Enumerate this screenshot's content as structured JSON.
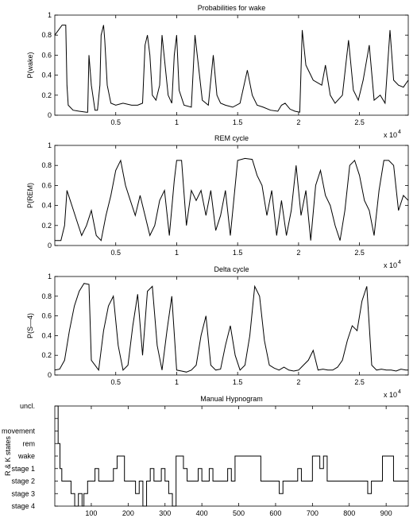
{
  "colors": {
    "line": "#000000",
    "axes": "#000000",
    "background": "#ffffff"
  },
  "chart_data": [
    {
      "type": "line",
      "title": "Probabilities for wake",
      "xlabel": "",
      "ylabel": "P(wake)",
      "xlim": [
        0,
        29000
      ],
      "ylim": [
        0,
        1
      ],
      "xticks": [
        5000,
        10000,
        15000,
        20000,
        25000
      ],
      "xtick_labels": [
        "0.5",
        "1",
        "1.5",
        "2",
        "2.5"
      ],
      "yticks": [
        0,
        0.2,
        0.4,
        0.6,
        0.8,
        1
      ],
      "ytick_labels": [
        "0",
        "0.2",
        "0.4",
        "0.6",
        "0.8",
        "1"
      ],
      "x_multiplier": "x 10",
      "x_multiplier_exp": "4",
      "grid": false,
      "series": [
        {
          "x": [
            0,
            600,
            900,
            1000,
            1100,
            1500,
            2000,
            2600,
            2700,
            2800,
            3000,
            3300,
            3500,
            3700,
            3800,
            4000,
            4100,
            4300,
            4600,
            5000,
            5600,
            6300,
            6800,
            7200,
            7400,
            7600,
            7800,
            8000,
            8300,
            8600,
            8800,
            9300,
            9600,
            9800,
            10000,
            10200,
            10600,
            11200,
            11500,
            12100,
            12600,
            13000,
            13300,
            13600,
            14000,
            14600,
            15200,
            15800,
            16200,
            16600,
            17100,
            17700,
            18300,
            18600,
            18900,
            19300,
            19700,
            20100,
            20300,
            20600,
            21200,
            21900,
            22200,
            22600,
            23000,
            23600,
            24100,
            24500,
            24900,
            25300,
            25800,
            26200,
            26700,
            27100,
            27500,
            27800,
            28200,
            28600,
            29000
          ],
          "y": [
            0.8,
            0.9,
            0.9,
            0.3,
            0.1,
            0.05,
            0.04,
            0.03,
            0.03,
            0.6,
            0.3,
            0.05,
            0.05,
            0.3,
            0.8,
            0.9,
            0.75,
            0.3,
            0.12,
            0.1,
            0.12,
            0.1,
            0.1,
            0.12,
            0.7,
            0.8,
            0.6,
            0.2,
            0.15,
            0.3,
            0.8,
            0.2,
            0.12,
            0.6,
            0.8,
            0.25,
            0.1,
            0.08,
            0.8,
            0.15,
            0.1,
            0.6,
            0.2,
            0.12,
            0.1,
            0.08,
            0.12,
            0.45,
            0.2,
            0.1,
            0.08,
            0.05,
            0.04,
            0.1,
            0.12,
            0.06,
            0.04,
            0.03,
            0.85,
            0.5,
            0.35,
            0.3,
            0.5,
            0.2,
            0.12,
            0.2,
            0.75,
            0.25,
            0.15,
            0.35,
            0.7,
            0.15,
            0.2,
            0.12,
            0.85,
            0.35,
            0.3,
            0.28,
            0.35
          ]
        }
      ]
    },
    {
      "type": "line",
      "title": "REM cycle",
      "xlabel": "",
      "ylabel": "P(REM)",
      "xlim": [
        0,
        29000
      ],
      "ylim": [
        0,
        1
      ],
      "xticks": [
        5000,
        10000,
        15000,
        20000,
        25000
      ],
      "xtick_labels": [
        "0.5",
        "1",
        "1.5",
        "2",
        "2.5"
      ],
      "yticks": [
        0,
        0.2,
        0.4,
        0.6,
        0.8,
        1
      ],
      "ytick_labels": [
        "0",
        "0.2",
        "0.4",
        "0.6",
        "0.8",
        "1"
      ],
      "x_multiplier": "x 10",
      "x_multiplier_exp": "4",
      "grid": false,
      "series": [
        {
          "x": [
            0,
            500,
            800,
            1000,
            1400,
            1800,
            2200,
            2600,
            3000,
            3400,
            3800,
            4200,
            4600,
            5000,
            5400,
            5800,
            6200,
            6600,
            7000,
            7400,
            7800,
            8200,
            8600,
            9000,
            9400,
            9800,
            10000,
            10400,
            10800,
            11200,
            11600,
            12000,
            12400,
            12800,
            13200,
            13600,
            14000,
            14400,
            15000,
            15600,
            16200,
            16600,
            17000,
            17400,
            17800,
            18200,
            18600,
            19000,
            19400,
            19800,
            20200,
            20600,
            21000,
            21400,
            21800,
            22200,
            22600,
            23000,
            23400,
            23800,
            24200,
            24600,
            25000,
            25400,
            25800,
            26200,
            26600,
            27000,
            27400,
            27800,
            28200,
            28600,
            29000
          ],
          "y": [
            0.05,
            0.05,
            0.2,
            0.55,
            0.4,
            0.25,
            0.1,
            0.2,
            0.35,
            0.1,
            0.05,
            0.3,
            0.5,
            0.75,
            0.85,
            0.6,
            0.45,
            0.3,
            0.5,
            0.3,
            0.1,
            0.2,
            0.45,
            0.55,
            0.1,
            0.65,
            0.85,
            0.85,
            0.2,
            0.55,
            0.45,
            0.55,
            0.3,
            0.55,
            0.15,
            0.3,
            0.55,
            0.1,
            0.85,
            0.87,
            0.86,
            0.7,
            0.6,
            0.3,
            0.55,
            0.1,
            0.45,
            0.1,
            0.35,
            0.8,
            0.3,
            0.55,
            0.05,
            0.6,
            0.75,
            0.5,
            0.4,
            0.2,
            0.05,
            0.35,
            0.8,
            0.85,
            0.7,
            0.45,
            0.35,
            0.1,
            0.55,
            0.85,
            0.85,
            0.8,
            0.35,
            0.5,
            0.45
          ]
        }
      ]
    },
    {
      "type": "line",
      "title": "Delta cycle",
      "xlabel": "",
      "ylabel": "P(S—4)",
      "xlim": [
        0,
        29000
      ],
      "ylim": [
        0,
        1
      ],
      "xticks": [
        5000,
        10000,
        15000,
        20000,
        25000
      ],
      "xtick_labels": [
        "0.5",
        "1",
        "1.5",
        "2",
        "2.5"
      ],
      "yticks": [
        0,
        0.2,
        0.4,
        0.6,
        0.8,
        1
      ],
      "ytick_labels": [
        "0",
        "0.2",
        "0.4",
        "0.6",
        "0.8",
        "1"
      ],
      "x_multiplier": "x 10",
      "x_multiplier_exp": "4",
      "grid": false,
      "series": [
        {
          "x": [
            0,
            400,
            800,
            1200,
            1600,
            2000,
            2400,
            2800,
            3000,
            3300,
            3600,
            4000,
            4400,
            4800,
            5200,
            5600,
            6000,
            6400,
            6800,
            7200,
            7600,
            8000,
            8400,
            8800,
            9200,
            9600,
            10000,
            10400,
            10800,
            11200,
            11600,
            12000,
            12400,
            12800,
            13200,
            13600,
            14000,
            14400,
            14800,
            15200,
            15600,
            16000,
            16400,
            16800,
            17200,
            17600,
            18000,
            18400,
            18800,
            19200,
            19600,
            20000,
            20400,
            20800,
            21200,
            21600,
            22000,
            22400,
            22800,
            23200,
            23600,
            24000,
            24400,
            24800,
            25200,
            25600,
            26000,
            26400,
            26800,
            27200,
            27600,
            28000,
            28400,
            28800,
            29000
          ],
          "y": [
            0.05,
            0.06,
            0.15,
            0.45,
            0.7,
            0.85,
            0.93,
            0.92,
            0.15,
            0.1,
            0.05,
            0.45,
            0.7,
            0.8,
            0.3,
            0.05,
            0.1,
            0.5,
            0.82,
            0.2,
            0.85,
            0.9,
            0.3,
            0.05,
            0.45,
            0.8,
            0.05,
            0.04,
            0.03,
            0.05,
            0.1,
            0.4,
            0.6,
            0.1,
            0.05,
            0.06,
            0.3,
            0.5,
            0.2,
            0.05,
            0.1,
            0.4,
            0.9,
            0.8,
            0.35,
            0.1,
            0.07,
            0.05,
            0.08,
            0.05,
            0.04,
            0.05,
            0.1,
            0.15,
            0.25,
            0.05,
            0.06,
            0.05,
            0.05,
            0.08,
            0.15,
            0.35,
            0.5,
            0.45,
            0.75,
            0.9,
            0.1,
            0.05,
            0.06,
            0.05,
            0.05,
            0.04,
            0.06,
            0.05,
            0.05
          ]
        }
      ]
    },
    {
      "type": "line",
      "title": "Manual Hypnogram",
      "xlabel": "",
      "ylabel": "R & K states",
      "xlim": [
        1,
        960
      ],
      "ylim": [
        -8,
        0
      ],
      "xticks": [
        100,
        200,
        300,
        400,
        500,
        600,
        700,
        800,
        900
      ],
      "xtick_labels": [
        "100",
        "200",
        "300",
        "400",
        "500",
        "600",
        "700",
        "800",
        "900"
      ],
      "y_categories": [
        "uncl.",
        "",
        "movement",
        "rem",
        "wake",
        "stage  1",
        "stage  2",
        "stage 3",
        "stage 4"
      ],
      "grid": false,
      "series": [
        {
          "x": [
            1,
            8,
            10,
            15,
            20,
            25,
            35,
            45,
            55,
            65,
            75,
            80,
            90,
            100,
            110,
            120,
            130,
            140,
            150,
            160,
            170,
            180,
            190,
            200,
            210,
            220,
            230,
            240,
            250,
            260,
            270,
            280,
            290,
            300,
            310,
            320,
            330,
            340,
            350,
            360,
            370,
            380,
            390,
            400,
            410,
            420,
            430,
            440,
            450,
            460,
            470,
            480,
            490,
            500,
            510,
            520,
            530,
            540,
            550,
            560,
            570,
            580,
            590,
            600,
            610,
            620,
            630,
            640,
            650,
            660,
            670,
            680,
            690,
            700,
            710,
            720,
            730,
            740,
            750,
            760,
            770,
            780,
            790,
            800,
            810,
            820,
            830,
            840,
            850,
            860,
            870,
            880,
            890,
            900,
            910,
            920,
            930,
            940,
            950,
            960
          ],
          "y": [
            0,
            0,
            -3,
            -5,
            -6,
            -6,
            -6,
            -7,
            -8,
            -7,
            -8,
            -7,
            -6,
            -6,
            -5,
            -6,
            -6,
            -6,
            -6,
            -5,
            -4,
            -4,
            -6,
            -6,
            -6,
            -7,
            -6,
            -8,
            -6,
            -5,
            -6,
            -6,
            -5,
            -6,
            -7,
            -8,
            -4,
            -4,
            -5,
            -6,
            -6,
            -6,
            -5,
            -6,
            -6,
            -5,
            -6,
            -6,
            -6,
            -6,
            -5,
            -6,
            -4,
            -4,
            -4,
            -4,
            -4,
            -4,
            -4,
            -6,
            -6,
            -6,
            -6,
            -6,
            -7,
            -6,
            -6,
            -6,
            -6,
            -5,
            -6,
            -6,
            -6,
            -4,
            -4,
            -5,
            -4,
            -6,
            -6,
            -6,
            -6,
            -6,
            -6,
            -6,
            -6,
            -6,
            -6,
            -6,
            -7,
            -6,
            -6,
            -6,
            -4,
            -4,
            -4,
            -6,
            -6,
            -6,
            -6,
            -6
          ]
        }
      ]
    }
  ]
}
